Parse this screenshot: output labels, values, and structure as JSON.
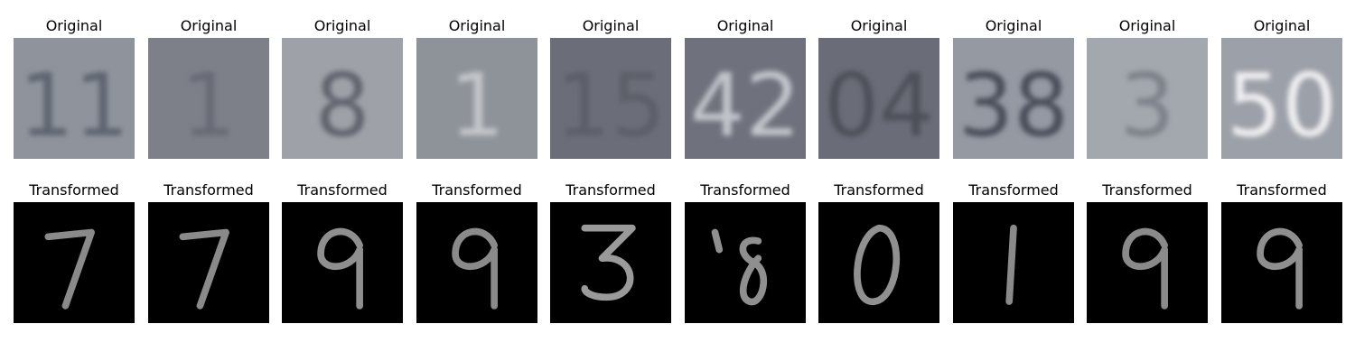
{
  "figure": {
    "columns": 10,
    "original_label": "Original",
    "transformed_label": "Transformed"
  },
  "panels": [
    {
      "original": {
        "title": "Original",
        "digits": "11",
        "bg": "#8f949c",
        "ink": "#5f6570"
      },
      "transformed": {
        "title": "Transformed",
        "digit": "7",
        "ink": "#8a8a8a"
      }
    },
    {
      "original": {
        "title": "Original",
        "digits": "1",
        "bg": "#7d8089",
        "ink": "#676b75"
      },
      "transformed": {
        "title": "Transformed",
        "digit": "7",
        "ink": "#8a8a8a"
      }
    },
    {
      "original": {
        "title": "Original",
        "digits": "8",
        "bg": "#9ea2a8",
        "ink": "#60646d"
      },
      "transformed": {
        "title": "Transformed",
        "digit": "9",
        "ink": "#8f8f8f"
      }
    },
    {
      "original": {
        "title": "Original",
        "digits": "1",
        "bg": "#8e939a",
        "ink": "#c3c6ca"
      },
      "transformed": {
        "title": "Transformed",
        "digit": "9",
        "ink": "#8a8a8a"
      }
    },
    {
      "original": {
        "title": "Original",
        "digits": "15",
        "bg": "#6b6e78",
        "ink": "#5b5e67"
      },
      "transformed": {
        "title": "Transformed",
        "digit": "3",
        "ink": "#9a9a9a"
      }
    },
    {
      "original": {
        "title": "Original",
        "digits": "42",
        "bg": "#6f727c",
        "ink": "#c2c5cb"
      },
      "transformed": {
        "title": "Transformed",
        "digit": "8",
        "ink": "#8f8f8f"
      }
    },
    {
      "original": {
        "title": "Original",
        "digits": "04",
        "bg": "#6a6d77",
        "ink": "#4d5059"
      },
      "transformed": {
        "title": "Transformed",
        "digit": "0",
        "ink": "#909090"
      }
    },
    {
      "original": {
        "title": "Original",
        "digits": "38",
        "bg": "#9599a2",
        "ink": "#4a4e58"
      },
      "transformed": {
        "title": "Transformed",
        "digit": "1",
        "ink": "#8a8a8a"
      }
    },
    {
      "original": {
        "title": "Original",
        "digits": "3",
        "bg": "#a3a7ae",
        "ink": "#7d818a"
      },
      "transformed": {
        "title": "Transformed",
        "digit": "9",
        "ink": "#8a8a8a"
      }
    },
    {
      "original": {
        "title": "Original",
        "digits": "50",
        "bg": "#9ca0a8",
        "ink": "#f0f0f2"
      },
      "transformed": {
        "title": "Transformed",
        "digit": "9",
        "ink": "#8f8f8f"
      }
    }
  ]
}
